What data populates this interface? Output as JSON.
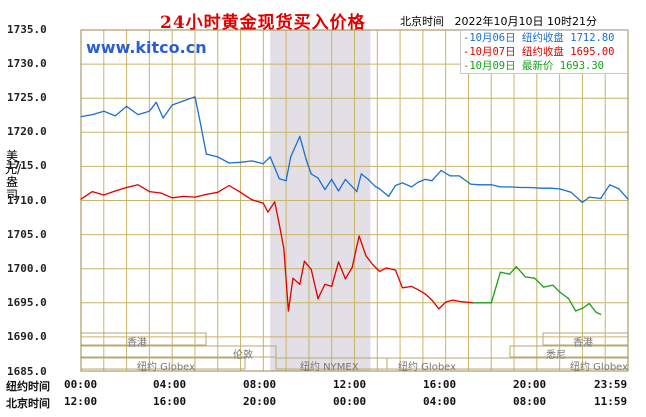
{
  "title": "24小时黄金现货买入价格",
  "location_time_label": "北京时间",
  "datetime": "2022年10月10日 10时21分",
  "site": "www.kitco.cn",
  "y_unit": "美元/盎司",
  "legend": [
    {
      "text": "-10月06日  纽约收盘 1712.80",
      "color": "#1a6fd6"
    },
    {
      "text": "-10月07日  纽约收盘 1695.00",
      "color": "#e00000"
    },
    {
      "text": "-10月09日    最新价 1693.30",
      "color": "#18a018"
    }
  ],
  "row_labels": {
    "ny": "纽约时间",
    "bj": "北京时间"
  },
  "ny_ticks": [
    "00:00",
    "04:00",
    "08:00",
    "12:00",
    "16:00",
    "20:00",
    "23:59"
  ],
  "bj_ticks": [
    "12:00",
    "16:00",
    "20:00",
    "00:00",
    "04:00",
    "08:00",
    "11:59"
  ],
  "markets": {
    "hongkong": "香港",
    "london": "伦敦",
    "nymex": "纽约 NYMEX",
    "globex1": "纽约 Globex",
    "globex2": "纽约 Globex",
    "globex3": "纽约 Globex",
    "sydney": "悉尼",
    "hongkong2": "香港"
  },
  "chart_data": {
    "type": "line",
    "title": "24小时黄金现货买入价格",
    "ylabel": "美元/盎司",
    "xlabel": "纽约时间",
    "ylim": [
      1685,
      1735
    ],
    "yticks": [
      1685.0,
      1690.0,
      1695.0,
      1700.0,
      1705.0,
      1710.0,
      1715.0,
      1720.0,
      1725.0,
      1730.0,
      1735.0
    ],
    "x_unit": "hours (New York time, 0–24)",
    "shaded_range": [
      8.3,
      12.7
    ],
    "series": [
      {
        "name": "10月06日",
        "color": "#1a6fd6",
        "points": [
          [
            0,
            1722.3
          ],
          [
            0.5,
            1722.6
          ],
          [
            1,
            1723.1
          ],
          [
            1.5,
            1722.4
          ],
          [
            2,
            1723.8
          ],
          [
            2.5,
            1722.6
          ],
          [
            3,
            1723.1
          ],
          [
            3.3,
            1724.4
          ],
          [
            3.6,
            1722.1
          ],
          [
            4,
            1724.0
          ],
          [
            4.5,
            1724.6
          ],
          [
            5,
            1725.2
          ],
          [
            5.2,
            1722.0
          ],
          [
            5.5,
            1716.8
          ],
          [
            6,
            1716.4
          ],
          [
            6.5,
            1715.5
          ],
          [
            7,
            1715.6
          ],
          [
            7.5,
            1715.8
          ],
          [
            8,
            1715.4
          ],
          [
            8.3,
            1716.4
          ],
          [
            8.7,
            1713.2
          ],
          [
            9,
            1712.9
          ],
          [
            9.2,
            1716.4
          ],
          [
            9.6,
            1719.4
          ],
          [
            9.9,
            1715.8
          ],
          [
            10.1,
            1713.9
          ],
          [
            10.4,
            1713.3
          ],
          [
            10.7,
            1711.6
          ],
          [
            11,
            1713.1
          ],
          [
            11.3,
            1711.4
          ],
          [
            11.6,
            1713.1
          ],
          [
            12.1,
            1711.3
          ],
          [
            12.3,
            1713.9
          ],
          [
            12.6,
            1713.1
          ],
          [
            12.9,
            1712.1
          ],
          [
            13.1,
            1711.7
          ],
          [
            13.5,
            1710.6
          ],
          [
            13.8,
            1712.2
          ],
          [
            14.1,
            1712.6
          ],
          [
            14.5,
            1712.0
          ],
          [
            14.8,
            1712.7
          ],
          [
            15.1,
            1713.1
          ],
          [
            15.4,
            1712.9
          ],
          [
            15.8,
            1714.4
          ],
          [
            16.2,
            1713.6
          ],
          [
            16.6,
            1713.6
          ],
          [
            17.1,
            1712.4
          ],
          [
            17.5,
            1712.3
          ],
          [
            18.0,
            1712.3
          ],
          [
            18.4,
            1712.0
          ],
          [
            18.8,
            1712.0
          ],
          [
            19.3,
            1711.9
          ],
          [
            19.7,
            1711.9
          ],
          [
            20.2,
            1711.8
          ],
          [
            20.6,
            1711.8
          ],
          [
            21.0,
            1711.7
          ],
          [
            21.5,
            1711.2
          ],
          [
            22.0,
            1709.7
          ],
          [
            22.3,
            1710.5
          ],
          [
            22.8,
            1710.3
          ],
          [
            23.2,
            1712.3
          ],
          [
            23.6,
            1711.7
          ],
          [
            24,
            1710.2
          ]
        ]
      },
      {
        "name": "10月07日",
        "color": "#e00000",
        "points": [
          [
            0,
            1710.2
          ],
          [
            0.5,
            1711.3
          ],
          [
            1,
            1710.8
          ],
          [
            1.5,
            1711.4
          ],
          [
            2,
            1711.9
          ],
          [
            2.5,
            1712.3
          ],
          [
            3,
            1711.3
          ],
          [
            3.5,
            1711.1
          ],
          [
            4,
            1710.4
          ],
          [
            4.5,
            1710.6
          ],
          [
            5,
            1710.5
          ],
          [
            5.5,
            1710.9
          ],
          [
            6,
            1711.2
          ],
          [
            6.5,
            1712.2
          ],
          [
            7,
            1711.2
          ],
          [
            7.5,
            1710.1
          ],
          [
            8,
            1709.6
          ],
          [
            8.2,
            1708.3
          ],
          [
            8.5,
            1709.8
          ],
          [
            8.7,
            1706.5
          ],
          [
            8.9,
            1703.0
          ],
          [
            9.1,
            1693.8
          ],
          [
            9.3,
            1698.6
          ],
          [
            9.6,
            1697.7
          ],
          [
            9.8,
            1701.1
          ],
          [
            10.1,
            1699.9
          ],
          [
            10.4,
            1695.6
          ],
          [
            10.7,
            1697.7
          ],
          [
            11.0,
            1697.4
          ],
          [
            11.3,
            1701.0
          ],
          [
            11.6,
            1698.5
          ],
          [
            11.9,
            1700.2
          ],
          [
            12.2,
            1704.8
          ],
          [
            12.5,
            1701.9
          ],
          [
            12.8,
            1700.6
          ],
          [
            13.1,
            1699.6
          ],
          [
            13.4,
            1700.1
          ],
          [
            13.8,
            1699.8
          ],
          [
            14.1,
            1697.2
          ],
          [
            14.5,
            1697.4
          ],
          [
            14.8,
            1696.9
          ],
          [
            15.1,
            1696.3
          ],
          [
            15.4,
            1695.4
          ],
          [
            15.7,
            1694.1
          ],
          [
            16.0,
            1695.1
          ],
          [
            16.3,
            1695.4
          ],
          [
            16.6,
            1695.2
          ],
          [
            16.9,
            1695.1
          ],
          [
            17.2,
            1695.0
          ]
        ]
      },
      {
        "name": "10月09日",
        "color": "#18a018",
        "points": [
          [
            17.2,
            1695.0
          ],
          [
            18.0,
            1695.0
          ],
          [
            18.4,
            1699.5
          ],
          [
            18.8,
            1699.2
          ],
          [
            19.1,
            1700.3
          ],
          [
            19.5,
            1698.8
          ],
          [
            19.9,
            1698.6
          ],
          [
            20.3,
            1697.3
          ],
          [
            20.7,
            1697.6
          ],
          [
            21.0,
            1696.6
          ],
          [
            21.4,
            1695.6
          ],
          [
            21.7,
            1693.8
          ],
          [
            22.0,
            1694.2
          ],
          [
            22.3,
            1694.9
          ],
          [
            22.6,
            1693.6
          ],
          [
            22.8,
            1693.3
          ]
        ]
      }
    ]
  }
}
